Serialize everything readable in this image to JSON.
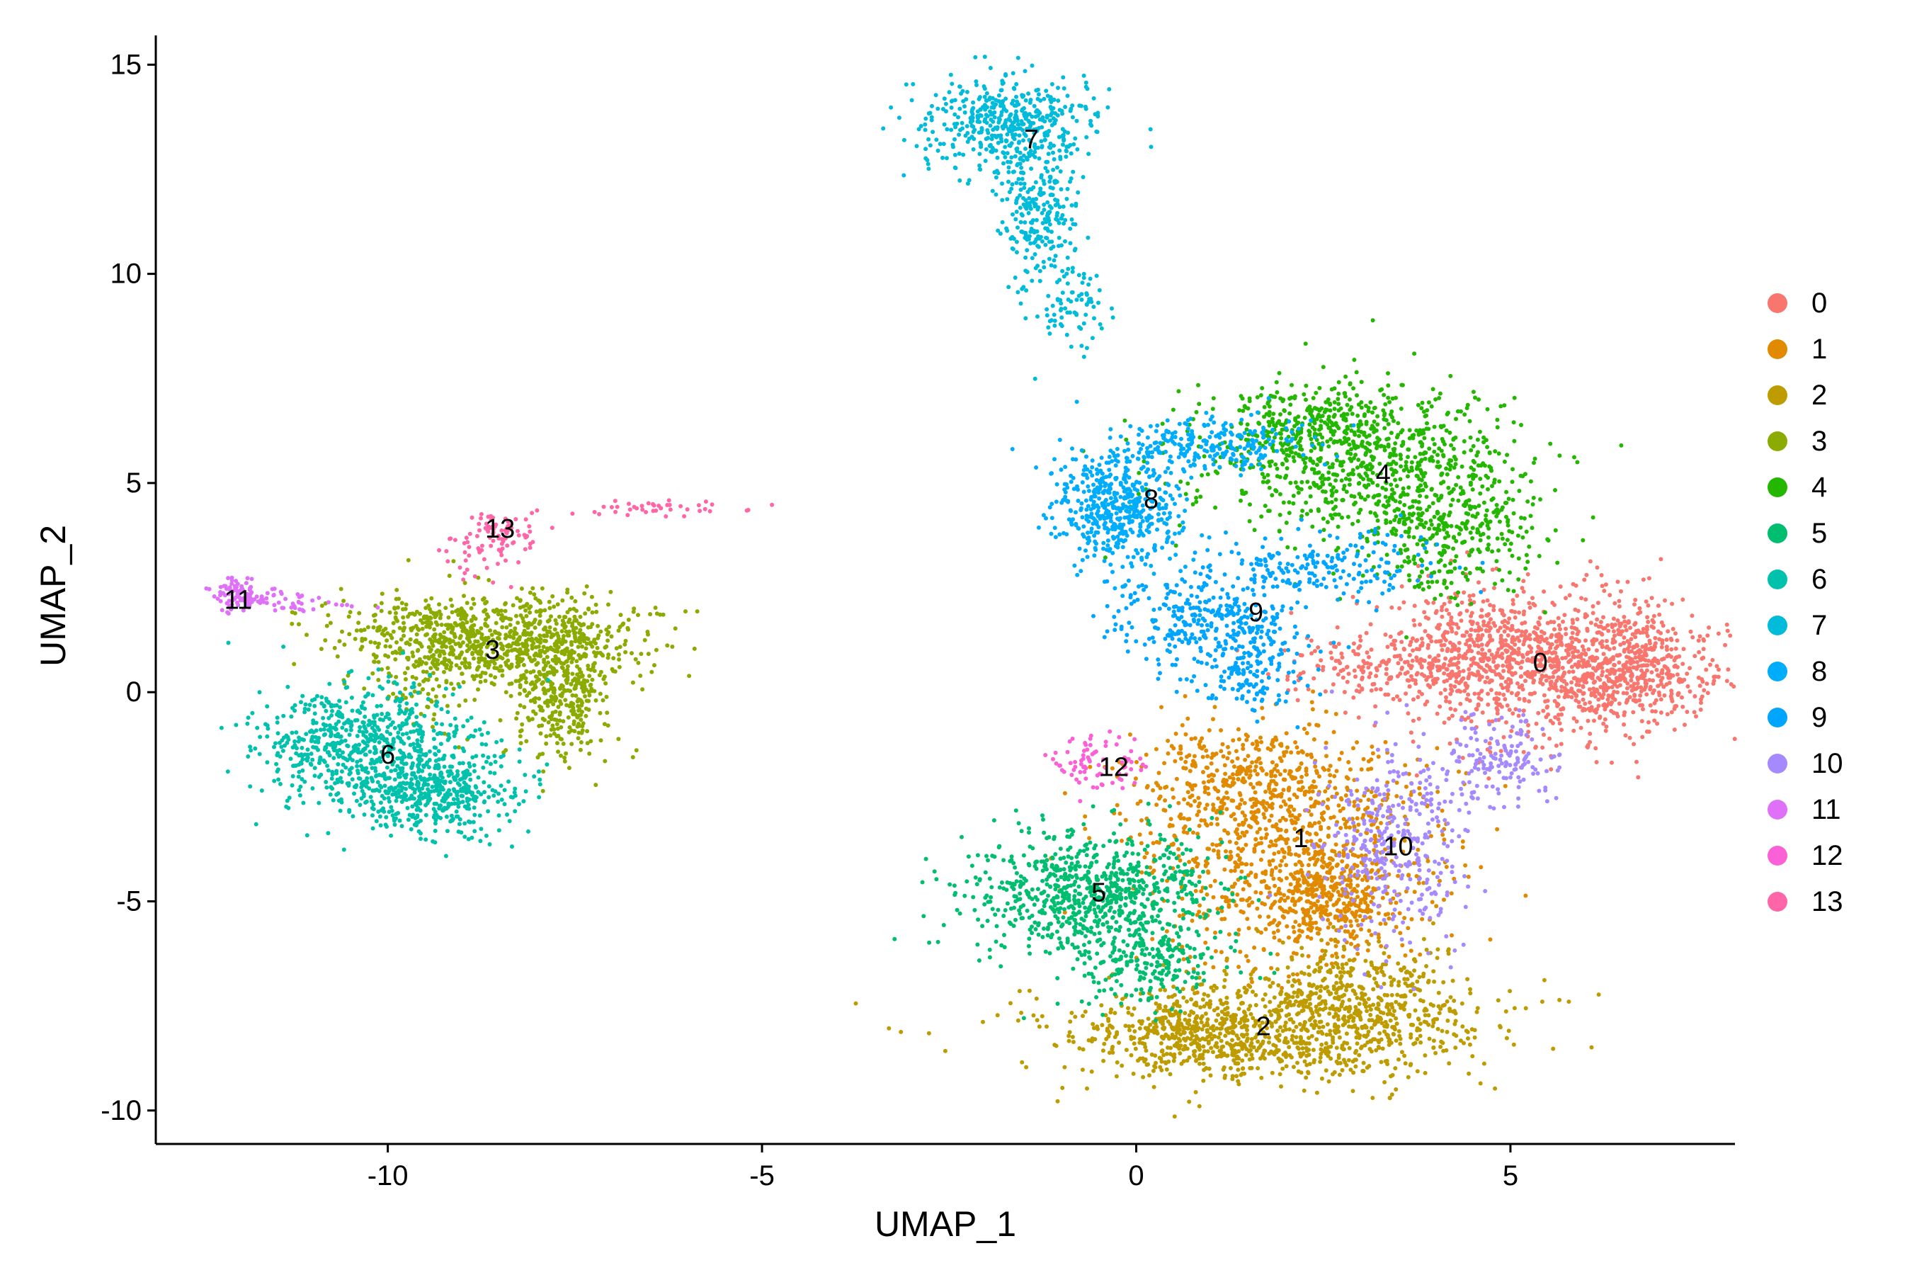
{
  "chart_data": {
    "type": "scatter",
    "title": "",
    "xlabel": "UMAP_1",
    "ylabel": "UMAP_2",
    "xlim": [
      -13.1,
      8.0
    ],
    "ylim": [
      -10.8,
      15.7
    ],
    "x_ticks": [
      -10,
      -5,
      0,
      5
    ],
    "y_ticks": [
      -10,
      -5,
      0,
      5,
      10,
      15
    ],
    "x_tick_labels": [
      "-10",
      "-5",
      "0",
      "5"
    ],
    "y_tick_labels": [
      "-10",
      "-5",
      "0",
      "5",
      "10",
      "15"
    ],
    "grid": false,
    "legend_position": "right",
    "point_size": 3,
    "seed": 20240611,
    "series": [
      {
        "name": "0",
        "color": "#F8766D",
        "count": 1700,
        "centroid": [
          5.4,
          0.7
        ],
        "blobs": [
          [
            5.6,
            0.6,
            1.1,
            0.85,
            0.6
          ],
          [
            4.6,
            1.2,
            0.7,
            0.7,
            0.15
          ],
          [
            6.5,
            0.5,
            0.5,
            0.6,
            0.15
          ],
          [
            3.5,
            0.6,
            0.8,
            0.4,
            0.1
          ]
        ]
      },
      {
        "name": "1",
        "color": "#E18A00",
        "count": 1500,
        "centroid": [
          2.2,
          -3.5
        ],
        "blobs": [
          [
            2.1,
            -3.8,
            1.0,
            1.3,
            0.6
          ],
          [
            1.4,
            -2.0,
            0.7,
            0.6,
            0.2
          ],
          [
            2.6,
            -5.0,
            0.4,
            0.6,
            0.2
          ]
        ]
      },
      {
        "name": "2",
        "color": "#BE9C00",
        "count": 1400,
        "centroid": [
          1.7,
          -8.0
        ],
        "blobs": [
          [
            1.8,
            -8.1,
            1.4,
            0.6,
            0.7
          ],
          [
            3.0,
            -7.2,
            0.6,
            0.6,
            0.2
          ],
          [
            0.6,
            -8.2,
            0.5,
            0.4,
            0.1
          ]
        ]
      },
      {
        "name": "3",
        "color": "#8CAB00",
        "count": 1300,
        "centroid": [
          -8.6,
          1.0
        ],
        "blobs": [
          [
            -8.6,
            1.3,
            1.0,
            0.55,
            0.6
          ],
          [
            -7.7,
            0.1,
            0.35,
            0.9,
            0.3
          ],
          [
            -9.4,
            0.5,
            0.3,
            0.8,
            0.1
          ]
        ]
      },
      {
        "name": "4",
        "color": "#24B700",
        "count": 1300,
        "centroid": [
          3.3,
          5.2
        ],
        "blobs": [
          [
            3.0,
            5.5,
            1.1,
            0.9,
            0.6
          ],
          [
            4.2,
            3.8,
            0.6,
            0.8,
            0.25
          ],
          [
            2.3,
            6.5,
            0.6,
            0.4,
            0.15
          ]
        ]
      },
      {
        "name": "5",
        "color": "#00BE70",
        "count": 1000,
        "centroid": [
          -0.5,
          -4.8
        ],
        "blobs": [
          [
            -0.6,
            -4.8,
            0.8,
            0.75,
            0.8
          ],
          [
            0.2,
            -6.5,
            0.5,
            0.5,
            0.2
          ]
        ]
      },
      {
        "name": "6",
        "color": "#00C1AB",
        "count": 1100,
        "centroid": [
          -10.0,
          -1.5
        ],
        "blobs": [
          [
            -10.3,
            -1.2,
            0.75,
            0.7,
            0.6
          ],
          [
            -9.4,
            -2.4,
            0.55,
            0.5,
            0.4
          ]
        ]
      },
      {
        "name": "7",
        "color": "#00BBDA",
        "count": 800,
        "centroid": [
          -1.4,
          13.2
        ],
        "blobs": [
          [
            -1.7,
            13.6,
            0.6,
            0.55,
            0.6
          ],
          [
            -1.3,
            11.5,
            0.25,
            0.8,
            0.3
          ],
          [
            -0.9,
            9.3,
            0.25,
            0.6,
            0.1
          ]
        ]
      },
      {
        "name": "8",
        "color": "#00ACFC",
        "count": 750,
        "centroid": [
          0.2,
          4.6
        ],
        "blobs": [
          [
            -0.2,
            4.5,
            0.45,
            0.75,
            0.7
          ],
          [
            1.0,
            5.9,
            0.6,
            0.35,
            0.3
          ]
        ]
      },
      {
        "name": "9",
        "color": "#00A5FF",
        "count": 650,
        "centroid": [
          1.6,
          1.9
        ],
        "blobs": [
          [
            1.0,
            1.7,
            0.6,
            0.5,
            0.5
          ],
          [
            2.5,
            3.0,
            0.8,
            0.4,
            0.3
          ],
          [
            1.5,
            0.5,
            0.4,
            0.5,
            0.2
          ]
        ]
      },
      {
        "name": "10",
        "color": "#A58AFF",
        "count": 500,
        "centroid": [
          3.5,
          -3.7
        ],
        "blobs": [
          [
            3.5,
            -3.6,
            0.5,
            1.2,
            0.7
          ],
          [
            4.9,
            -1.6,
            0.4,
            0.5,
            0.3
          ]
        ]
      },
      {
        "name": "11",
        "color": "#DF70F8",
        "count": 130,
        "centroid": [
          -12.0,
          2.2
        ],
        "blobs": [
          [
            -12.0,
            2.3,
            0.2,
            0.18,
            0.7
          ],
          [
            -11.3,
            2.1,
            0.4,
            0.15,
            0.3
          ]
        ]
      },
      {
        "name": "12",
        "color": "#FB61D7",
        "count": 80,
        "centroid": [
          -0.3,
          -1.8
        ],
        "blobs": [
          [
            -0.5,
            -1.7,
            0.35,
            0.3,
            1.0
          ]
        ]
      },
      {
        "name": "13",
        "color": "#FF66A8",
        "count": 140,
        "centroid": [
          -8.5,
          3.9
        ],
        "blobs": [
          [
            -8.5,
            3.9,
            0.25,
            0.25,
            0.5
          ],
          [
            -6.4,
            4.4,
            0.6,
            0.1,
            0.3
          ],
          [
            -8.9,
            3.2,
            0.2,
            0.3,
            0.2
          ]
        ]
      }
    ]
  }
}
